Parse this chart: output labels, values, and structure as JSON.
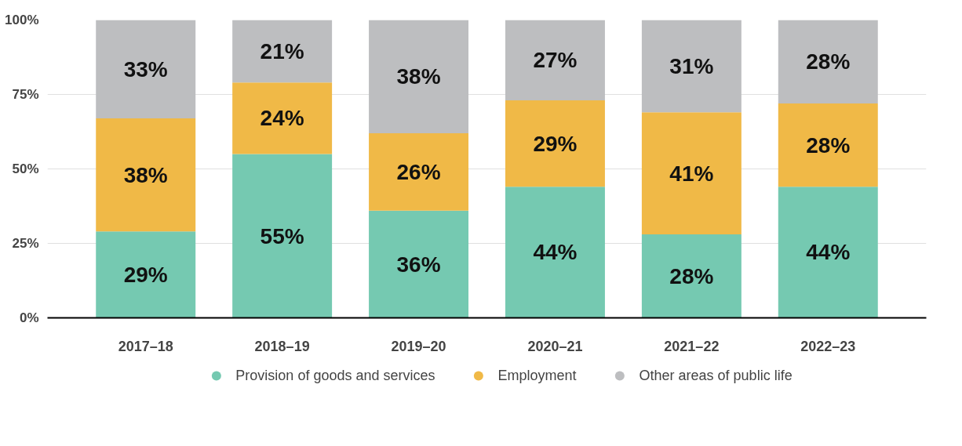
{
  "chart_data": {
    "type": "bar",
    "stacked": true,
    "categories": [
      "2017–18",
      "2018–19",
      "2019–20",
      "2020–21",
      "2021–22",
      "2022–23"
    ],
    "series": [
      {
        "name": "Provision of goods and services",
        "color": "#75c9b1",
        "values": [
          29,
          55,
          36,
          44,
          28,
          44
        ],
        "value_labels": [
          "29%",
          "55%",
          "36%",
          "44%",
          "28%",
          "44%"
        ]
      },
      {
        "name": "Employment",
        "color": "#f0b947",
        "values": [
          38,
          24,
          26,
          29,
          41,
          28
        ],
        "value_labels": [
          "38%",
          "24%",
          "26%",
          "29%",
          "41%",
          "28%"
        ]
      },
      {
        "name": "Other areas of public life",
        "color": "#bdbec0",
        "values": [
          33,
          21,
          38,
          27,
          31,
          28
        ],
        "value_labels": [
          "33%",
          "21%",
          "38%",
          "27%",
          "31%",
          "28%"
        ]
      }
    ],
    "ylim": [
      0,
      100
    ],
    "yticks": [
      {
        "value": 0,
        "label": "0%"
      },
      {
        "value": 25,
        "label": "25%"
      },
      {
        "value": 50,
        "label": "50%"
      },
      {
        "value": 75,
        "label": "75%"
      },
      {
        "value": 100,
        "label": "100%"
      }
    ],
    "grid": "y",
    "legend": "bottom",
    "marker": "circle"
  }
}
